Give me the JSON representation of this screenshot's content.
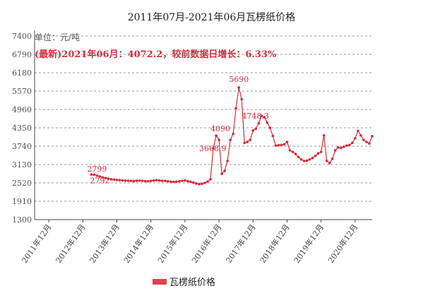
{
  "chart_data": {
    "type": "line",
    "title": "2011年07月-2021年06月瓦楞纸价格",
    "unit_label": "单位：元/吨",
    "latest_note": "(最新)2021年06月：4072.2，较前数据日增长：6.33%",
    "y_ticks": [
      "7400",
      "6790",
      "6180",
      "5570",
      "4960",
      "4350",
      "3740",
      "3130",
      "2520",
      "1910",
      "1300"
    ],
    "ylim": [
      1300,
      7400
    ],
    "x_ticks": [
      "2011年12月",
      "2012年12月",
      "2013年12月",
      "2014年12月",
      "2015年12月",
      "2016年12月",
      "2017年12月",
      "2018年12月",
      "2019年12月",
      "2020年12月"
    ],
    "xlim": [
      "2011-07",
      "2021-06"
    ],
    "grid": "horizontal dashed",
    "legend_position": "bottom",
    "series": [
      {
        "name": "瓦楞纸价格",
        "color": "#d62a3a",
        "points": [
          [
            "2013-03",
            2799
          ],
          [
            "2013-04",
            2792
          ],
          [
            "2013-05",
            2760
          ],
          [
            "2013-06",
            2730
          ],
          [
            "2013-07",
            2705
          ],
          [
            "2013-08",
            2680
          ],
          [
            "2013-09",
            2660
          ],
          [
            "2013-10",
            2640
          ],
          [
            "2013-11",
            2630
          ],
          [
            "2013-12",
            2620
          ],
          [
            "2014-01",
            2610
          ],
          [
            "2014-02",
            2600
          ],
          [
            "2014-03",
            2595
          ],
          [
            "2014-04",
            2590
          ],
          [
            "2014-05",
            2585
          ],
          [
            "2014-06",
            2580
          ],
          [
            "2014-07",
            2590
          ],
          [
            "2014-08",
            2595
          ],
          [
            "2014-09",
            2590
          ],
          [
            "2014-10",
            2580
          ],
          [
            "2014-11",
            2575
          ],
          [
            "2014-12",
            2585
          ],
          [
            "2015-01",
            2600
          ],
          [
            "2015-02",
            2610
          ],
          [
            "2015-03",
            2600
          ],
          [
            "2015-04",
            2590
          ],
          [
            "2015-05",
            2585
          ],
          [
            "2015-06",
            2575
          ],
          [
            "2015-07",
            2560
          ],
          [
            "2015-08",
            2555
          ],
          [
            "2015-09",
            2560
          ],
          [
            "2015-10",
            2575
          ],
          [
            "2015-11",
            2590
          ],
          [
            "2015-12",
            2600
          ],
          [
            "2016-01",
            2580
          ],
          [
            "2016-02",
            2555
          ],
          [
            "2016-03",
            2530
          ],
          [
            "2016-04",
            2500
          ],
          [
            "2016-05",
            2480
          ],
          [
            "2016-06",
            2490
          ],
          [
            "2016-07",
            2520
          ],
          [
            "2016-08",
            2560
          ],
          [
            "2016-09",
            2640
          ],
          [
            "2016-10",
            3668.9
          ],
          [
            "2016-11",
            4090
          ],
          [
            "2016-12",
            3950
          ],
          [
            "2017-01",
            2820
          ],
          [
            "2017-02",
            2920
          ],
          [
            "2017-03",
            3250
          ],
          [
            "2017-04",
            3950
          ],
          [
            "2017-05",
            4150
          ],
          [
            "2017-06",
            5000
          ],
          [
            "2017-07",
            5690
          ],
          [
            "2017-08",
            5300
          ],
          [
            "2017-09",
            3850
          ],
          [
            "2017-10",
            3880
          ],
          [
            "2017-11",
            3950
          ],
          [
            "2017-12",
            4260
          ],
          [
            "2018-01",
            4320
          ],
          [
            "2018-02",
            4500
          ],
          [
            "2018-03",
            4748.3
          ],
          [
            "2018-04",
            4700
          ],
          [
            "2018-05",
            4520
          ],
          [
            "2018-06",
            4350
          ],
          [
            "2018-07",
            4080
          ],
          [
            "2018-08",
            3760
          ],
          [
            "2018-09",
            3770
          ],
          [
            "2018-10",
            3780
          ],
          [
            "2018-11",
            3800
          ],
          [
            "2018-12",
            3880
          ],
          [
            "2019-01",
            3600
          ],
          [
            "2019-02",
            3550
          ],
          [
            "2019-03",
            3480
          ],
          [
            "2019-04",
            3380
          ],
          [
            "2019-05",
            3300
          ],
          [
            "2019-06",
            3250
          ],
          [
            "2019-07",
            3260
          ],
          [
            "2019-08",
            3300
          ],
          [
            "2019-09",
            3350
          ],
          [
            "2019-10",
            3420
          ],
          [
            "2019-11",
            3500
          ],
          [
            "2019-12",
            3550
          ],
          [
            "2020-01",
            4100
          ],
          [
            "2020-02",
            3250
          ],
          [
            "2020-03",
            3180
          ],
          [
            "2020-04",
            3320
          ],
          [
            "2020-05",
            3600
          ],
          [
            "2020-06",
            3700
          ],
          [
            "2020-07",
            3680
          ],
          [
            "2020-08",
            3720
          ],
          [
            "2020-09",
            3760
          ],
          [
            "2020-10",
            3780
          ],
          [
            "2020-11",
            3850
          ],
          [
            "2020-12",
            4000
          ],
          [
            "2021-01",
            4250
          ],
          [
            "2021-02",
            4100
          ],
          [
            "2021-03",
            3950
          ],
          [
            "2021-04",
            3880
          ],
          [
            "2021-05",
            3830
          ],
          [
            "2021-06",
            4072.2
          ]
        ]
      }
    ],
    "annotations": [
      {
        "text": "2799",
        "x": "2013-03",
        "y": 2799
      },
      {
        "text": "2792",
        "x": "2013-04",
        "y": 2792
      },
      {
        "text": "4090",
        "x": "2016-11",
        "y": 4090
      },
      {
        "text": "3668.9",
        "x": "2016-10",
        "y": 3668.9
      },
      {
        "text": "5690",
        "x": "2017-07",
        "y": 5690
      },
      {
        "text": "4748.3",
        "x": "2018-03",
        "y": 4748.3
      }
    ]
  }
}
